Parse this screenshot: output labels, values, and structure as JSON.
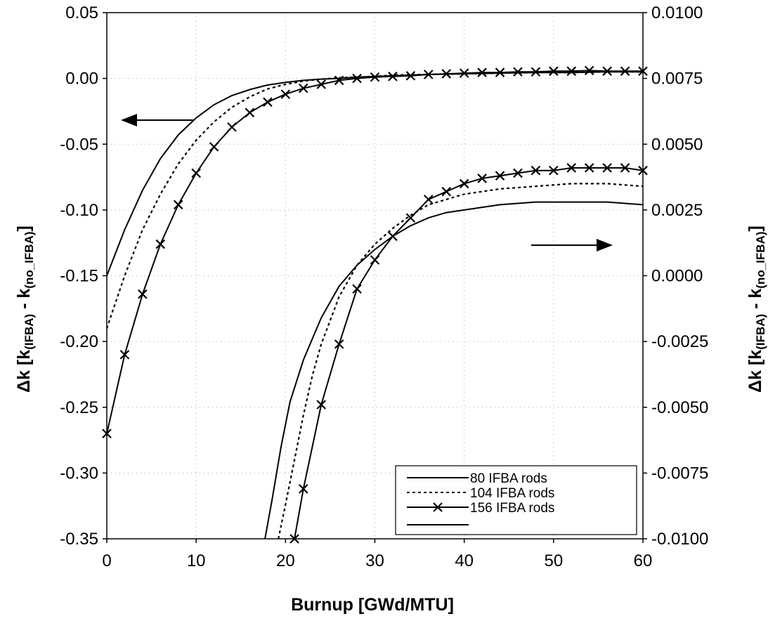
{
  "chart_data": {
    "type": "line",
    "title": "",
    "xlabel": "Burnup [GWd/MTU]",
    "ylabel_left": {
      "prefix": "Δk [k",
      "sub1": "(IFBA)",
      "mid": " - k",
      "sub2": "(no_IFBA)",
      "suffix": "]"
    },
    "ylabel_right": {
      "prefix": "Δk [k",
      "sub1": "(IFBA)",
      "mid": " - k",
      "sub2": "(no_IFBA)",
      "suffix": "]"
    },
    "xlim": [
      0,
      60
    ],
    "ylim_left": [
      -0.35,
      0.05
    ],
    "ylim_right": [
      -0.01,
      0.01
    ],
    "x_ticks": [
      0,
      10,
      20,
      30,
      40,
      50,
      60
    ],
    "y_ticks_left": [
      "0.05",
      "0.00",
      "-0.05",
      "-0.10",
      "-0.15",
      "-0.20",
      "-0.25",
      "-0.30",
      "-0.35"
    ],
    "y_ticks_right": [
      "0.0100",
      "0.0075",
      "0.0050",
      "0.0025",
      "0.0000",
      "-0.0025",
      "-0.0050",
      "-0.0075",
      "-0.0100"
    ],
    "grid": true,
    "legend_position": "bottom-right",
    "legend": [
      {
        "label": "80 IFBA rods",
        "style": "solid"
      },
      {
        "label": "104 IFBA rods",
        "style": "dotted"
      },
      {
        "label": "156 IFBA rods",
        "style": "solid-x"
      }
    ],
    "series": [
      {
        "name": "80 IFBA rods",
        "axis": "left",
        "style": "solid",
        "x": [
          0,
          2,
          4,
          6,
          8,
          10,
          12,
          14,
          16,
          18,
          20,
          22,
          24,
          26,
          28,
          30,
          32,
          36,
          40,
          44,
          48,
          52,
          56,
          60
        ],
        "y": [
          -0.15,
          -0.115,
          -0.085,
          -0.061,
          -0.043,
          -0.03,
          -0.02,
          -0.013,
          -0.0085,
          -0.005,
          -0.003,
          -0.0015,
          -0.0005,
          0,
          0.001,
          0.0015,
          0.002,
          0.003,
          0.0035,
          0.004,
          0.0045,
          0.0045,
          0.005,
          0.005
        ]
      },
      {
        "name": "104 IFBA rods",
        "axis": "left",
        "style": "dotted",
        "x": [
          0,
          2,
          4,
          6,
          8,
          10,
          12,
          14,
          16,
          18,
          20,
          22,
          24,
          26,
          28,
          30,
          32,
          36,
          40,
          44,
          48,
          52,
          56,
          60
        ],
        "y": [
          -0.19,
          -0.15,
          -0.115,
          -0.088,
          -0.065,
          -0.047,
          -0.033,
          -0.022,
          -0.014,
          -0.008,
          -0.0045,
          -0.002,
          -0.0005,
          0.0005,
          0.001,
          0.0015,
          0.0025,
          0.003,
          0.0035,
          0.004,
          0.0045,
          0.0045,
          0.005,
          0.005
        ]
      },
      {
        "name": "156 IFBA rods",
        "axis": "left",
        "style": "solid-x",
        "x": [
          0,
          2,
          4,
          6,
          8,
          10,
          12,
          14,
          16,
          18,
          20,
          22,
          24,
          26,
          28,
          30,
          32,
          34,
          36,
          38,
          40,
          42,
          44,
          46,
          48,
          50,
          52,
          54,
          56,
          58,
          60
        ],
        "y": [
          -0.27,
          -0.21,
          -0.164,
          -0.126,
          -0.096,
          -0.072,
          -0.052,
          -0.037,
          -0.026,
          -0.018,
          -0.012,
          -0.0075,
          -0.0045,
          -0.0015,
          0,
          0.001,
          0.0015,
          0.002,
          0.003,
          0.0035,
          0.004,
          0.0045,
          0.0045,
          0.005,
          0.005,
          0.0055,
          0.0055,
          0.006,
          0.0055,
          0.0055,
          0.0055
        ]
      },
      {
        "name": "80 IFBA rods",
        "axis": "right",
        "style": "solid",
        "x": [
          17.7,
          18.5,
          19.5,
          20.5,
          22,
          24,
          26,
          28,
          30,
          32,
          34,
          36,
          38,
          40,
          44,
          48,
          52,
          56,
          60
        ],
        "y": [
          -0.01,
          -0.0085,
          -0.0065,
          -0.0048,
          -0.0032,
          -0.0016,
          -0.0004,
          0.0004,
          0.001,
          0.0015,
          0.0019,
          0.0022,
          0.0024,
          0.0025,
          0.0027,
          0.0028,
          0.0028,
          0.0028,
          0.0027
        ]
      },
      {
        "name": "104 IFBA rods",
        "axis": "right",
        "style": "dotted",
        "x": [
          19.2,
          20,
          21,
          22,
          23,
          24,
          26,
          28,
          30,
          32,
          34,
          36,
          38,
          40,
          44,
          48,
          52,
          56,
          60
        ],
        "y": [
          -0.01,
          -0.0087,
          -0.007,
          -0.0053,
          -0.0038,
          -0.0026,
          -0.0008,
          0.0004,
          0.0012,
          0.0018,
          0.0023,
          0.0027,
          0.0029,
          0.0031,
          0.0033,
          0.0034,
          0.0035,
          0.0035,
          0.0034
        ]
      },
      {
        "name": "156 IFBA rods",
        "axis": "right",
        "style": "solid-x",
        "x": [
          21,
          22,
          24,
          26,
          28,
          30,
          32,
          34,
          36,
          38,
          40,
          42,
          44,
          46,
          48,
          50,
          52,
          54,
          56,
          58,
          60
        ],
        "y": [
          -0.01,
          -0.0081,
          -0.0049,
          -0.0026,
          -0.0005,
          0.0006,
          0.0015,
          0.0022,
          0.0029,
          0.0032,
          0.0035,
          0.0037,
          0.0038,
          0.0039,
          0.004,
          0.004,
          0.0041,
          0.0041,
          0.0041,
          0.0041,
          0.004
        ]
      }
    ]
  }
}
